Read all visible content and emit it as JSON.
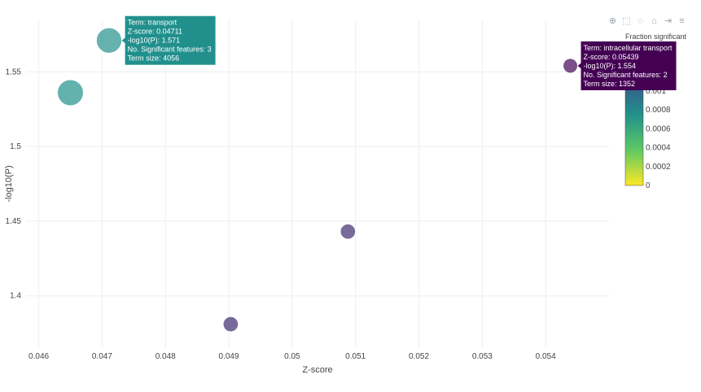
{
  "modebar": {
    "icons": [
      "zoom-icon",
      "box-select-icon",
      "lasso-icon",
      "home-icon",
      "spike-icon",
      "hover-toggle-icon"
    ],
    "glyphs": [
      "⊕",
      "⬚",
      "◌",
      "⌂",
      "⇥",
      "≡"
    ]
  },
  "chart_data": {
    "type": "scatter",
    "xlabel": "Z-score",
    "ylabel": "-log10(P)",
    "xlim": [
      0.0458,
      0.055
    ],
    "ylim": [
      1.365,
      1.585
    ],
    "x_ticks": [
      0.046,
      0.047,
      0.048,
      0.049,
      0.05,
      0.051,
      0.052,
      0.053,
      0.054
    ],
    "x_tick_labels": [
      "0.046",
      "0.047",
      "0.048",
      "0.049",
      "0.05",
      "0.051",
      "0.052",
      "0.053",
      "0.054"
    ],
    "y_ticks": [
      1.4,
      1.45,
      1.5,
      1.55
    ],
    "y_tick_labels": [
      "1.4",
      "1.45",
      "1.5",
      "1.55"
    ],
    "grid": true,
    "colorbar": {
      "title": "Fraction significant",
      "range": [
        0,
        0.0015
      ],
      "ticks": [
        0,
        0.0002,
        0.0004,
        0.0006,
        0.0008,
        0.001,
        0.0012,
        0.0014
      ],
      "tick_labels": [
        "0",
        "0.0002",
        "0.0004",
        "0.0006",
        "0.0008",
        "0.001",
        "0.0012",
        "0.0014"
      ],
      "colorscale": [
        "#fde725",
        "#5ec962",
        "#21918c",
        "#3b528b",
        "#440154"
      ]
    },
    "points": [
      {
        "x": 0.0465,
        "y": 1.536,
        "size": 4200,
        "fraction": 0.00075
      },
      {
        "x": 0.04711,
        "y": 1.571,
        "size": 4056,
        "fraction": 0.00074
      },
      {
        "x": 0.04903,
        "y": 1.381,
        "size": 1500,
        "fraction": 0.0013
      },
      {
        "x": 0.05088,
        "y": 1.443,
        "size": 1500,
        "fraction": 0.0013
      },
      {
        "x": 0.05439,
        "y": 1.554,
        "size": 1352,
        "fraction": 0.00148
      }
    ],
    "hover_labels": [
      {
        "point": 1,
        "side": "right",
        "color": "#21908d",
        "lines": [
          "Term: transport",
          "Z-score: 0.04711",
          "-log10(P): 1.571",
          "No. Significant features: 3",
          "Term size: 4056"
        ]
      },
      {
        "point": 4,
        "side": "right",
        "color": "#440154",
        "lines": [
          "Term: intracellular transport",
          "Z-score: 0.05439",
          "-log10(P): 1.554",
          "No. Significant features: 2",
          "Term size: 1352"
        ]
      }
    ]
  }
}
